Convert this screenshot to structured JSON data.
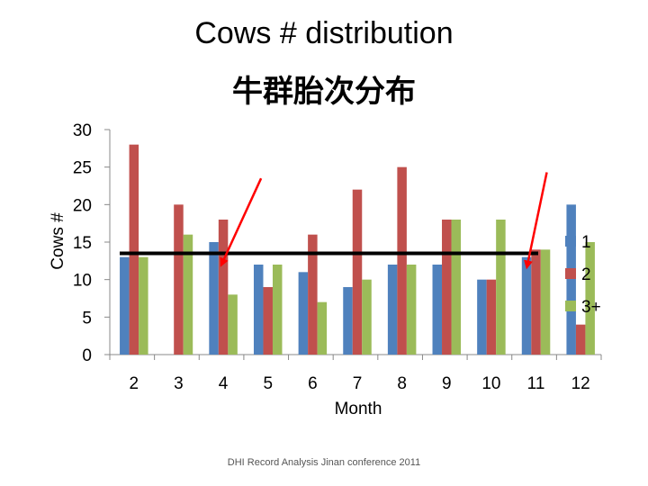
{
  "chart_data": {
    "type": "bar",
    "title": "Cows # distribution",
    "subtitle": "牛群胎次分布",
    "xlabel": "Month",
    "ylabel": "Cows #",
    "categories": [
      "2",
      "3",
      "4",
      "5",
      "6",
      "7",
      "8",
      "9",
      "10",
      "11",
      "12"
    ],
    "series": [
      {
        "name": "1",
        "color": "#4F81BD",
        "values": [
          13,
          0,
          15,
          12,
          11,
          9,
          12,
          12,
          10,
          13,
          20
        ]
      },
      {
        "name": "2",
        "color": "#C0504D",
        "values": [
          28,
          20,
          18,
          9,
          16,
          22,
          25,
          18,
          10,
          14,
          4
        ]
      },
      {
        "name": "3+",
        "color": "#9BBB59",
        "values": [
          13,
          16,
          8,
          12,
          7,
          10,
          12,
          18,
          18,
          14,
          15
        ]
      }
    ],
    "yticks": [
      "0",
      "5",
      "10",
      "15",
      "20",
      "25",
      "30"
    ],
    "ylim": [
      0,
      30
    ],
    "grid": false,
    "legend": "right",
    "reference_line": {
      "y": 13.5,
      "color": "#000000"
    },
    "annotations": [
      {
        "type": "arrow",
        "color": "#FF0000",
        "from": {
          "category": "4",
          "y": 23.5
        },
        "to": {
          "category": "4",
          "y": 12
        }
      },
      {
        "type": "arrow",
        "color": "#FF0000",
        "from": {
          "category": "11",
          "y": 24.3
        },
        "to": {
          "category": "11",
          "y": 11.7
        }
      }
    ]
  },
  "footer": "DHI Record Analysis Jinan conference 2011"
}
